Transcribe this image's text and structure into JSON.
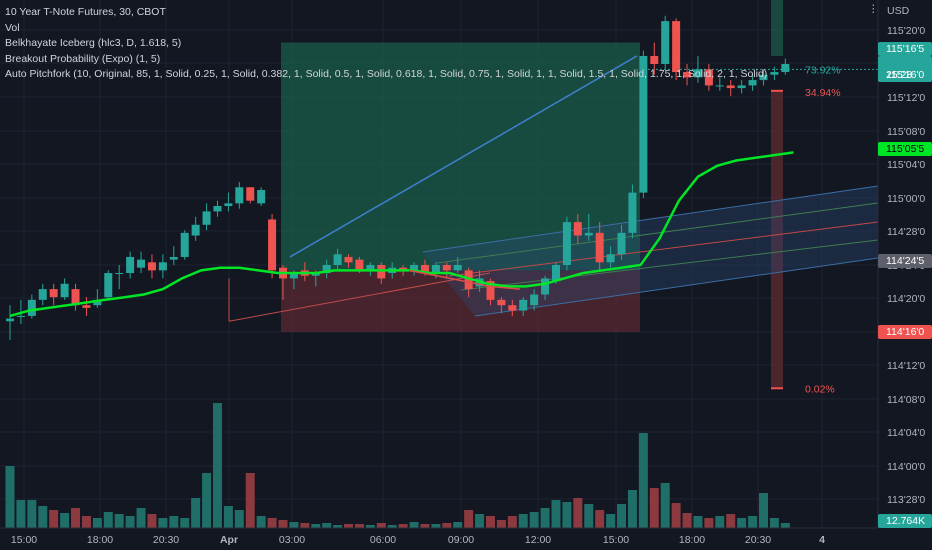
{
  "legend": {
    "title": "10 Year T-Note Futures, 30, CBOT",
    "vol": "Vol",
    "ind1": "Belkhayate Iceberg (hlc3, D, 1.618, 5)",
    "ind2": "Breakout Probability (Expo) (1, 5)",
    "ind3": "Auto Pitchfork (10, Original, 85, 1, Solid, 0.25, 1, Solid, 0.382, 1, Solid, 0.5, 1, Solid, 0.618, 1, Solid, 0.75, 1, Solid, 1, 1, Solid, 1.5, 1, Solid, 1.75, 1, Solid, 2, 1, Solid)"
  },
  "colors": {
    "up": "#26a69a",
    "down": "#ef5350",
    "volUp": "#1f6e68",
    "volDown": "#8c3a3f",
    "iceberg": "#00e626",
    "pitchfork_mid": "#e04b4b",
    "pitchfork_fill": "#2a4b7c",
    "bg": "#131722",
    "grid": "#1f2330"
  },
  "price_axis": {
    "currency": "USD",
    "labels": [
      "115'20'0",
      "115'16'0",
      "115'12'0",
      "115'08'0",
      "115'04'0",
      "115'00'0",
      "114'28'0",
      "114'24'0",
      "114'20'0",
      "114'16'0",
      "114'12'0",
      "114'08'0",
      "114'04'0",
      "114'00'0",
      "113'28'0"
    ],
    "tags": {
      "price_high": "115'16'5",
      "last_price": "115'16'0",
      "countdown": "25:28",
      "iceberg": "115'05'5",
      "mid_level": "114'24'5",
      "low_level": "114'16'0",
      "volume": "12.764K"
    }
  },
  "time_axis": {
    "labels": [
      "15:00",
      "18:00",
      "20:30",
      "Apr",
      "03:00",
      "06:00",
      "09:00",
      "12:00",
      "15:00",
      "18:00",
      "20:30",
      "4"
    ]
  },
  "breakout": {
    "up_pct": "73.92%",
    "mid_pct": "34.94%",
    "down_pct": "0.02%"
  },
  "chart_data": {
    "type": "candlestick",
    "y_unit": "price (points, 32nds)",
    "ylim": [
      113.75,
      115.92
    ],
    "candles": [
      {
        "o": 114.54,
        "h": 114.6,
        "l": 114.47,
        "c": 114.55
      },
      {
        "o": 114.56,
        "h": 114.62,
        "l": 114.53,
        "c": 114.56
      },
      {
        "o": 114.56,
        "h": 114.64,
        "l": 114.55,
        "c": 114.62
      },
      {
        "o": 114.62,
        "h": 114.68,
        "l": 114.6,
        "c": 114.66
      },
      {
        "o": 114.66,
        "h": 114.68,
        "l": 114.6,
        "c": 114.63
      },
      {
        "o": 114.63,
        "h": 114.7,
        "l": 114.62,
        "c": 114.68
      },
      {
        "o": 114.66,
        "h": 114.68,
        "l": 114.58,
        "c": 114.6
      },
      {
        "o": 114.6,
        "h": 114.63,
        "l": 114.56,
        "c": 114.59
      },
      {
        "o": 114.6,
        "h": 114.66,
        "l": 114.59,
        "c": 114.62
      },
      {
        "o": 114.63,
        "h": 114.73,
        "l": 114.62,
        "c": 114.72
      },
      {
        "o": 114.72,
        "h": 114.75,
        "l": 114.66,
        "c": 114.72
      },
      {
        "o": 114.72,
        "h": 114.8,
        "l": 114.7,
        "c": 114.78
      },
      {
        "o": 114.74,
        "h": 114.8,
        "l": 114.72,
        "c": 114.77
      },
      {
        "o": 114.76,
        "h": 114.79,
        "l": 114.7,
        "c": 114.73
      },
      {
        "o": 114.73,
        "h": 114.79,
        "l": 114.7,
        "c": 114.76
      },
      {
        "o": 114.77,
        "h": 114.82,
        "l": 114.75,
        "c": 114.78
      },
      {
        "o": 114.78,
        "h": 114.88,
        "l": 114.77,
        "c": 114.87
      },
      {
        "o": 114.86,
        "h": 114.93,
        "l": 114.84,
        "c": 114.9
      },
      {
        "o": 114.9,
        "h": 114.98,
        "l": 114.88,
        "c": 114.95
      },
      {
        "o": 114.95,
        "h": 114.99,
        "l": 114.93,
        "c": 114.97
      },
      {
        "o": 114.97,
        "h": 115.02,
        "l": 114.95,
        "c": 114.98
      },
      {
        "o": 114.98,
        "h": 115.06,
        "l": 114.96,
        "c": 115.04
      },
      {
        "o": 115.04,
        "h": 115.04,
        "l": 114.98,
        "c": 114.99
      },
      {
        "o": 114.98,
        "h": 115.04,
        "l": 114.97,
        "c": 115.03
      },
      {
        "o": 114.92,
        "h": 114.94,
        "l": 114.7,
        "c": 114.73
      },
      {
        "o": 114.74,
        "h": 114.75,
        "l": 114.62,
        "c": 114.7
      },
      {
        "o": 114.7,
        "h": 114.73,
        "l": 114.66,
        "c": 114.72
      },
      {
        "o": 114.73,
        "h": 114.76,
        "l": 114.69,
        "c": 114.71
      },
      {
        "o": 114.71,
        "h": 114.73,
        "l": 114.67,
        "c": 114.72
      },
      {
        "o": 114.72,
        "h": 114.77,
        "l": 114.7,
        "c": 114.75
      },
      {
        "o": 114.75,
        "h": 114.81,
        "l": 114.73,
        "c": 114.79
      },
      {
        "o": 114.78,
        "h": 114.79,
        "l": 114.74,
        "c": 114.76
      },
      {
        "o": 114.77,
        "h": 114.78,
        "l": 114.72,
        "c": 114.73
      },
      {
        "o": 114.73,
        "h": 114.76,
        "l": 114.71,
        "c": 114.75
      },
      {
        "o": 114.75,
        "h": 114.76,
        "l": 114.68,
        "c": 114.7
      },
      {
        "o": 114.72,
        "h": 114.76,
        "l": 114.7,
        "c": 114.74
      },
      {
        "o": 114.74,
        "h": 114.75,
        "l": 114.71,
        "c": 114.73
      },
      {
        "o": 114.73,
        "h": 114.76,
        "l": 114.71,
        "c": 114.75
      },
      {
        "o": 114.75,
        "h": 114.77,
        "l": 114.71,
        "c": 114.72
      },
      {
        "o": 114.72,
        "h": 114.76,
        "l": 114.7,
        "c": 114.75
      },
      {
        "o": 114.75,
        "h": 114.76,
        "l": 114.7,
        "c": 114.73
      },
      {
        "o": 114.73,
        "h": 114.78,
        "l": 114.72,
        "c": 114.75
      },
      {
        "o": 114.73,
        "h": 114.74,
        "l": 114.63,
        "c": 114.66
      },
      {
        "o": 114.67,
        "h": 114.73,
        "l": 114.65,
        "c": 114.7
      },
      {
        "o": 114.69,
        "h": 114.7,
        "l": 114.6,
        "c": 114.62
      },
      {
        "o": 114.62,
        "h": 114.63,
        "l": 114.57,
        "c": 114.6
      },
      {
        "o": 114.6,
        "h": 114.62,
        "l": 114.56,
        "c": 114.58
      },
      {
        "o": 114.58,
        "h": 114.63,
        "l": 114.56,
        "c": 114.62
      },
      {
        "o": 114.6,
        "h": 114.66,
        "l": 114.58,
        "c": 114.64
      },
      {
        "o": 114.64,
        "h": 114.71,
        "l": 114.62,
        "c": 114.7
      },
      {
        "o": 114.69,
        "h": 114.76,
        "l": 114.68,
        "c": 114.75
      },
      {
        "o": 114.75,
        "h": 114.93,
        "l": 114.73,
        "c": 114.91
      },
      {
        "o": 114.91,
        "h": 114.94,
        "l": 114.83,
        "c": 114.86
      },
      {
        "o": 114.86,
        "h": 114.94,
        "l": 114.84,
        "c": 114.87
      },
      {
        "o": 114.87,
        "h": 114.91,
        "l": 114.73,
        "c": 114.76
      },
      {
        "o": 114.76,
        "h": 114.82,
        "l": 114.74,
        "c": 114.79
      },
      {
        "o": 114.79,
        "h": 114.9,
        "l": 114.77,
        "c": 114.87
      },
      {
        "o": 114.87,
        "h": 115.05,
        "l": 114.85,
        "c": 115.02
      },
      {
        "o": 115.02,
        "h": 115.55,
        "l": 115.0,
        "c": 115.53
      },
      {
        "o": 115.53,
        "h": 115.58,
        "l": 115.46,
        "c": 115.5
      },
      {
        "o": 115.5,
        "h": 115.68,
        "l": 115.48,
        "c": 115.66
      },
      {
        "o": 115.66,
        "h": 115.67,
        "l": 115.44,
        "c": 115.47
      },
      {
        "o": 115.47,
        "h": 115.5,
        "l": 115.42,
        "c": 115.45
      },
      {
        "o": 115.45,
        "h": 115.53,
        "l": 115.43,
        "c": 115.48
      },
      {
        "o": 115.48,
        "h": 115.5,
        "l": 115.4,
        "c": 115.42
      },
      {
        "o": 115.42,
        "h": 115.45,
        "l": 115.4,
        "c": 115.42
      },
      {
        "o": 115.42,
        "h": 115.44,
        "l": 115.38,
        "c": 115.41
      },
      {
        "o": 115.41,
        "h": 115.44,
        "l": 115.39,
        "c": 115.42
      },
      {
        "o": 115.42,
        "h": 115.46,
        "l": 115.4,
        "c": 115.44
      },
      {
        "o": 115.44,
        "h": 115.48,
        "l": 115.42,
        "c": 115.46
      },
      {
        "o": 115.46,
        "h": 115.49,
        "l": 115.44,
        "c": 115.47
      },
      {
        "o": 115.47,
        "h": 115.52,
        "l": 115.46,
        "c": 115.5
      }
    ],
    "volume": [
      62,
      28,
      28,
      22,
      18,
      15,
      20,
      12,
      10,
      16,
      14,
      12,
      20,
      14,
      10,
      12,
      10,
      30,
      55,
      125,
      22,
      18,
      55,
      12,
      10,
      8,
      6,
      5,
      4,
      5,
      3,
      4,
      4,
      3,
      5,
      3,
      4,
      6,
      4,
      4,
      5,
      6,
      18,
      14,
      12,
      8,
      12,
      14,
      16,
      20,
      28,
      26,
      30,
      24,
      18,
      14,
      24,
      38,
      95,
      40,
      45,
      25,
      15,
      12,
      10,
      12,
      14,
      10,
      12,
      35,
      10,
      5
    ],
    "iceberg_line": [
      114.56,
      114.58,
      114.59,
      114.6,
      114.61,
      114.62,
      114.63,
      114.64,
      114.66,
      114.7,
      114.73,
      114.74,
      114.74,
      114.73,
      114.72,
      114.72,
      114.72,
      114.73,
      114.73,
      114.73,
      114.73,
      114.73,
      114.72,
      114.72,
      114.7,
      114.68,
      114.67,
      114.67,
      114.68,
      114.7,
      114.72,
      114.73,
      114.74,
      114.75,
      114.85,
      114.99,
      115.08,
      115.12,
      115.14,
      115.15,
      115.16,
      115.17
    ]
  }
}
